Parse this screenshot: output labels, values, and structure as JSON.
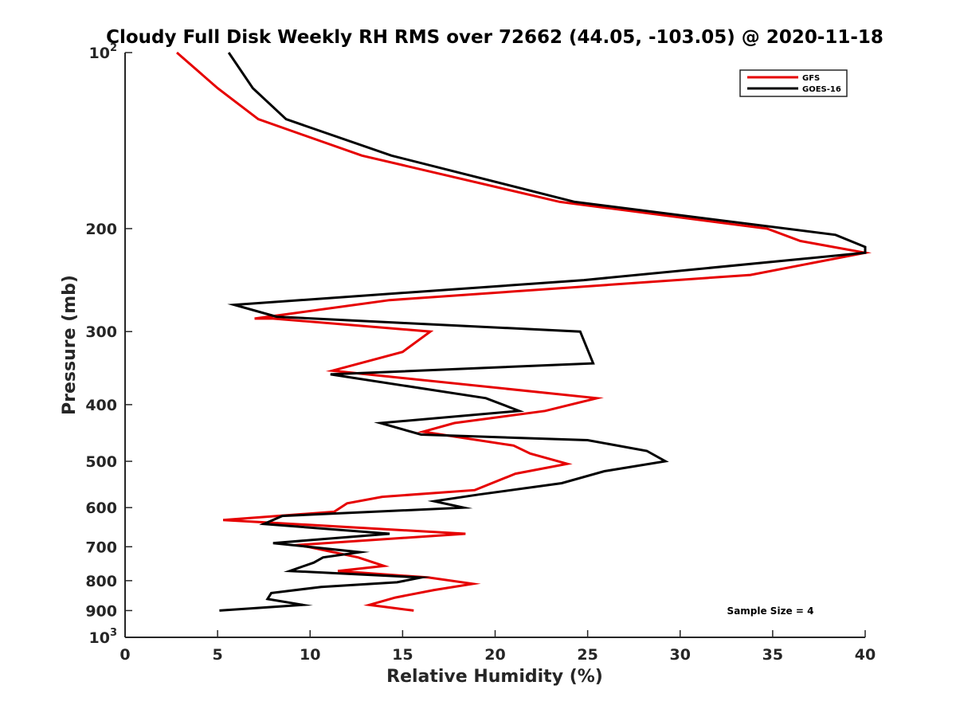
{
  "chart_data": {
    "type": "line",
    "title": "Cloudy Full Disk Weekly RH RMS over 72662 (44.05, -103.05) @ 2020-11-18",
    "xlabel": "Relative Humidity (%)",
    "ylabel": "Pressure (mb)",
    "xlim": [
      0,
      40
    ],
    "ylim": [
      100,
      1000
    ],
    "y_scale": "log",
    "y_reversed": true,
    "grid": false,
    "legend_position": "top-right",
    "x_ticks": [
      {
        "value": 0,
        "label": "0"
      },
      {
        "value": 5,
        "label": "5"
      },
      {
        "value": 10,
        "label": "10"
      },
      {
        "value": 15,
        "label": "15"
      },
      {
        "value": 20,
        "label": "20"
      },
      {
        "value": 25,
        "label": "25"
      },
      {
        "value": 30,
        "label": "30"
      },
      {
        "value": 35,
        "label": "35"
      },
      {
        "value": 40,
        "label": "40"
      }
    ],
    "y_ticks": [
      {
        "value": 100,
        "base": "10",
        "exp": "2"
      },
      {
        "value": 200,
        "label": "200"
      },
      {
        "value": 300,
        "label": "300"
      },
      {
        "value": 400,
        "label": "400"
      },
      {
        "value": 500,
        "label": "500"
      },
      {
        "value": 600,
        "label": "600"
      },
      {
        "value": 700,
        "label": "700"
      },
      {
        "value": 800,
        "label": "800"
      },
      {
        "value": 900,
        "label": "900"
      },
      {
        "value": 1000,
        "base": "10",
        "exp": "3"
      }
    ],
    "annotation": "Sample Size = 4",
    "series": [
      {
        "name": "GFS",
        "color": "#e60000",
        "points": [
          [
            2.8,
            100
          ],
          [
            5.0,
            115
          ],
          [
            7.2,
            130
          ],
          [
            12.8,
            150
          ],
          [
            23.5,
            180
          ],
          [
            34.7,
            200
          ],
          [
            36.5,
            210
          ],
          [
            40.0,
            220
          ],
          [
            33.8,
            240
          ],
          [
            14.3,
            265
          ],
          [
            7.0,
            285
          ],
          [
            8.0,
            285
          ],
          [
            16.5,
            300
          ],
          [
            15.0,
            325
          ],
          [
            11.2,
            350
          ],
          [
            25.5,
            390
          ],
          [
            22.7,
            410
          ],
          [
            17.8,
            430
          ],
          [
            16.1,
            445
          ],
          [
            21.0,
            470
          ],
          [
            21.9,
            485
          ],
          [
            23.9,
            505
          ],
          [
            21.1,
            525
          ],
          [
            18.9,
            560
          ],
          [
            13.9,
            575
          ],
          [
            12.0,
            590
          ],
          [
            11.3,
            610
          ],
          [
            5.3,
            630
          ],
          [
            18.4,
            665
          ],
          [
            9.4,
            695
          ],
          [
            12.6,
            730
          ],
          [
            14.0,
            755
          ],
          [
            11.5,
            770
          ],
          [
            16.4,
            790
          ],
          [
            18.8,
            810
          ],
          [
            16.7,
            830
          ],
          [
            14.6,
            855
          ],
          [
            13.2,
            880
          ],
          [
            15.6,
            900
          ]
        ]
      },
      {
        "name": "GOES-16",
        "color": "#000000",
        "points": [
          [
            5.6,
            100
          ],
          [
            6.9,
            115
          ],
          [
            8.7,
            130
          ],
          [
            14.4,
            150
          ],
          [
            24.3,
            180
          ],
          [
            38.4,
            205
          ],
          [
            40.0,
            215
          ],
          [
            40.0,
            220
          ],
          [
            24.8,
            245
          ],
          [
            5.9,
            270
          ],
          [
            8.2,
            283
          ],
          [
            15.0,
            290
          ],
          [
            24.6,
            300
          ],
          [
            25.3,
            340
          ],
          [
            11.1,
            355
          ],
          [
            19.5,
            390
          ],
          [
            21.3,
            410
          ],
          [
            13.8,
            430
          ],
          [
            16.0,
            450
          ],
          [
            25.0,
            460
          ],
          [
            28.2,
            480
          ],
          [
            29.2,
            500
          ],
          [
            25.9,
            520
          ],
          [
            23.6,
            545
          ],
          [
            19.1,
            570
          ],
          [
            16.7,
            585
          ],
          [
            18.3,
            600
          ],
          [
            8.5,
            620
          ],
          [
            7.5,
            640
          ],
          [
            14.3,
            665
          ],
          [
            8.0,
            690
          ],
          [
            12.7,
            715
          ],
          [
            10.7,
            730
          ],
          [
            10.2,
            745
          ],
          [
            8.9,
            770
          ],
          [
            16.0,
            790
          ],
          [
            14.7,
            805
          ],
          [
            10.6,
            820
          ],
          [
            7.9,
            840
          ],
          [
            7.7,
            860
          ],
          [
            9.6,
            880
          ],
          [
            5.1,
            900
          ]
        ]
      }
    ]
  }
}
